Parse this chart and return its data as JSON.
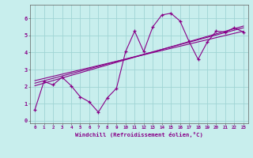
{
  "bg_color": "#c8eeed",
  "grid_color": "#a0d4d4",
  "line_color": "#880088",
  "xlabel": "Windchill (Refroidissement éolien,°C)",
  "xlim": [
    -0.5,
    23.5
  ],
  "ylim": [
    -0.15,
    6.8
  ],
  "yticks": [
    0,
    1,
    2,
    3,
    4,
    5,
    6
  ],
  "xticks": [
    0,
    1,
    2,
    3,
    4,
    5,
    6,
    7,
    8,
    9,
    10,
    11,
    12,
    13,
    14,
    15,
    16,
    17,
    18,
    19,
    20,
    21,
    22,
    23
  ],
  "series1_x": [
    0,
    1,
    2,
    3,
    4,
    5,
    6,
    7,
    8,
    9,
    10,
    11,
    12,
    13,
    14,
    15,
    16,
    17,
    18,
    19,
    20,
    21,
    22,
    23
  ],
  "series1_y": [
    0.65,
    2.3,
    2.1,
    2.55,
    2.05,
    1.4,
    1.1,
    0.5,
    1.35,
    1.9,
    4.05,
    5.25,
    4.05,
    5.5,
    6.2,
    6.3,
    5.85,
    4.65,
    3.6,
    4.6,
    5.25,
    5.2,
    5.45,
    5.2
  ],
  "series2_x": [
    0,
    23
  ],
  "series2_y": [
    2.05,
    5.55
  ],
  "series3_x": [
    0,
    23
  ],
  "series3_y": [
    2.2,
    5.45
  ],
  "series4_x": [
    0,
    23
  ],
  "series4_y": [
    2.35,
    5.25
  ]
}
